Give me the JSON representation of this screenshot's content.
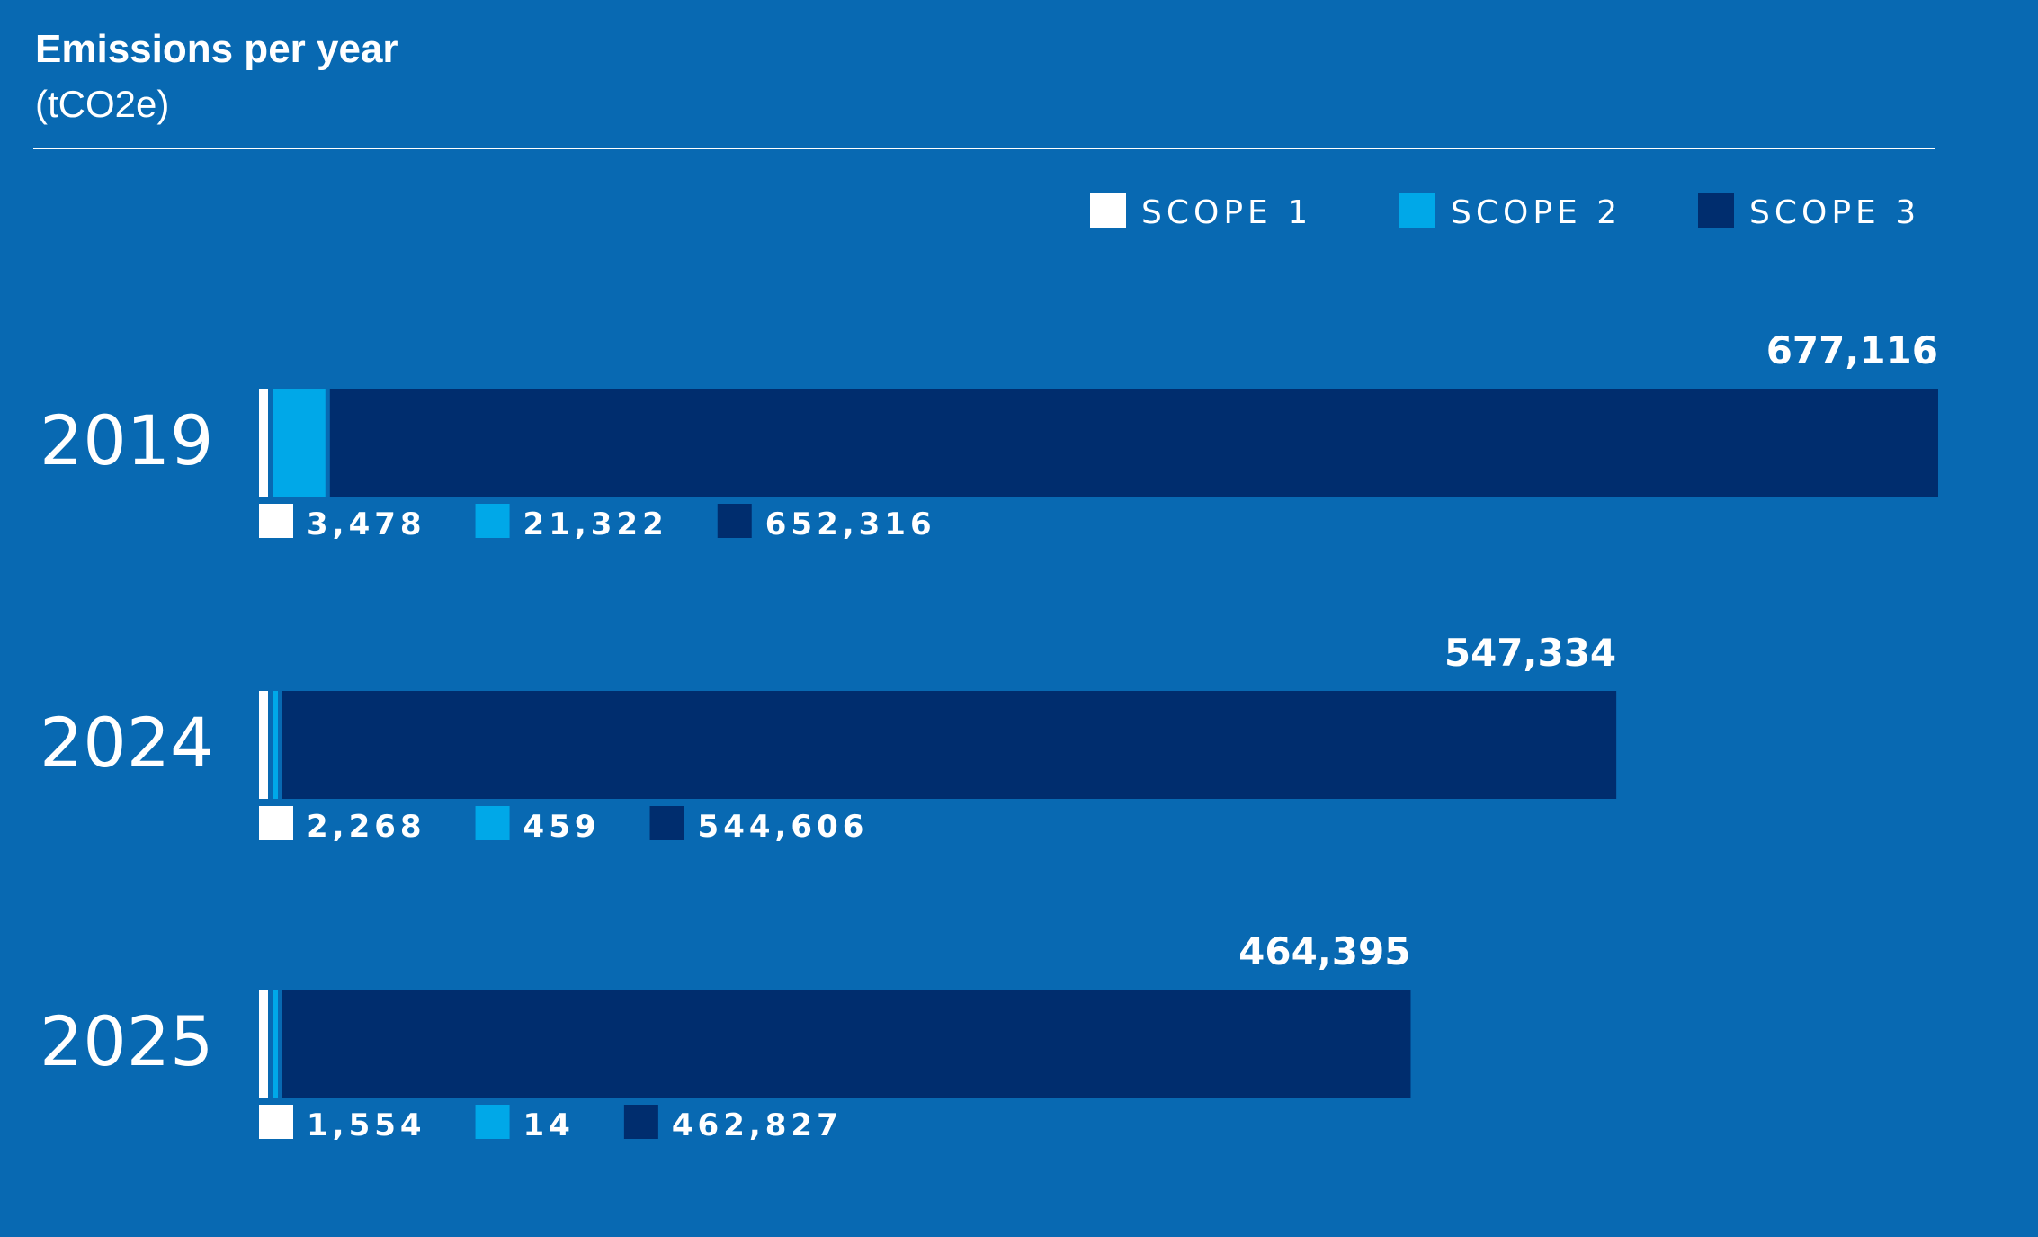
{
  "header": {
    "title": "Emissions per year",
    "subtitle": "(tCO2e)"
  },
  "colors": {
    "background": "#0869b2",
    "scope1": "#ffffff",
    "scope2": "#00a8e8",
    "scope3": "#002d6e"
  },
  "chart_data": {
    "type": "bar",
    "orientation": "horizontal",
    "stacked": true,
    "title": "Emissions per year",
    "subtitle": "(tCO2e)",
    "legend_position": "top-right",
    "grid": false,
    "categories": [
      "2019",
      "2024",
      "2025"
    ],
    "series": [
      {
        "name": "SCOPE 1",
        "values": [
          3478,
          2268,
          1554
        ],
        "labels": [
          "3,478",
          "2,268",
          "1,554"
        ]
      },
      {
        "name": "SCOPE 2",
        "values": [
          21322,
          459,
          14
        ],
        "labels": [
          "21,322",
          "459",
          "14"
        ]
      },
      {
        "name": "SCOPE 3",
        "values": [
          652316,
          544606,
          462827
        ],
        "labels": [
          "652,316",
          "544,606",
          "462,827"
        ]
      }
    ],
    "totals": [
      677116,
      547334,
      464395
    ],
    "total_labels": [
      "677,116",
      "547,334",
      "464,395"
    ],
    "xlim": [
      0,
      677116
    ]
  }
}
